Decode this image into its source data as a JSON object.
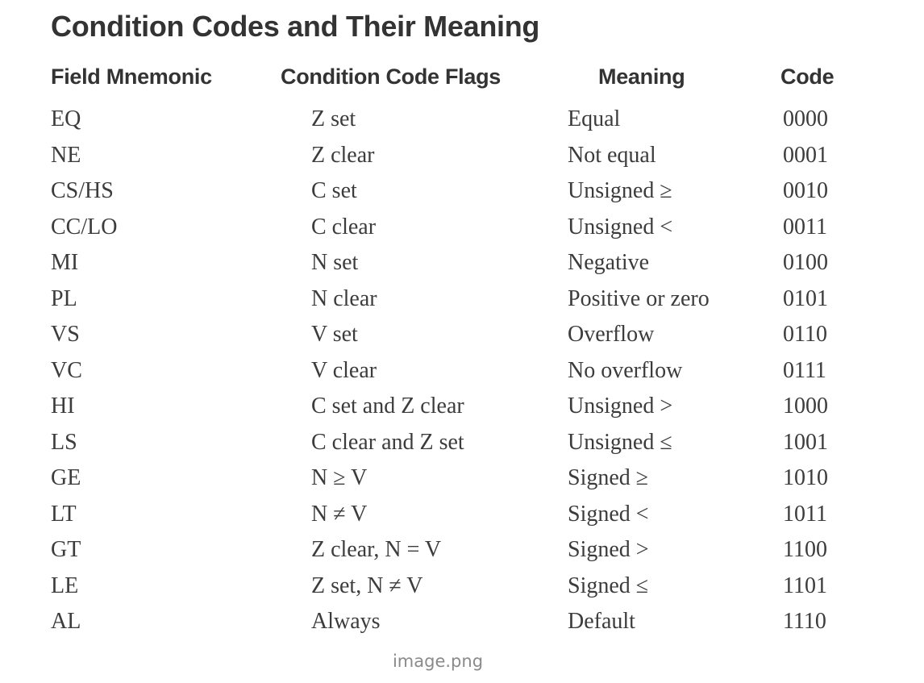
{
  "title": "Condition Codes and Their Meaning",
  "headers": [
    "Field Mnemonic",
    "Condition Code Flags",
    "Meaning",
    "Code"
  ],
  "rows": [
    [
      "EQ",
      "Z set",
      "Equal",
      "0000"
    ],
    [
      "NE",
      "Z clear",
      "Not equal",
      "0001"
    ],
    [
      "CS/HS",
      "C set",
      "Unsigned ≥",
      "0010"
    ],
    [
      "CC/LO",
      "C clear",
      "Unsigned <",
      "0011"
    ],
    [
      "MI",
      "N set",
      "Negative",
      "0100"
    ],
    [
      "PL",
      "N clear",
      "Positive or zero",
      "0101"
    ],
    [
      "VS",
      "V set",
      "Overflow",
      "0110"
    ],
    [
      "VC",
      "V clear",
      "No overflow",
      "0111"
    ],
    [
      "HI",
      "C set and Z clear",
      "Unsigned >",
      "1000"
    ],
    [
      "LS",
      "C clear and Z set",
      "Unsigned ≤",
      "1001"
    ],
    [
      "GE",
      "N ≥ V",
      "Signed ≥",
      "1010"
    ],
    [
      "LT",
      "N ≠ V",
      "Signed <",
      "1011"
    ],
    [
      "GT",
      "Z clear, N = V",
      "Signed >",
      "1100"
    ],
    [
      "LE",
      "Z set, N ≠ V",
      "Signed ≤",
      "1101"
    ],
    [
      "AL",
      "Always",
      "Default",
      "1110"
    ]
  ],
  "caption": "image.png"
}
